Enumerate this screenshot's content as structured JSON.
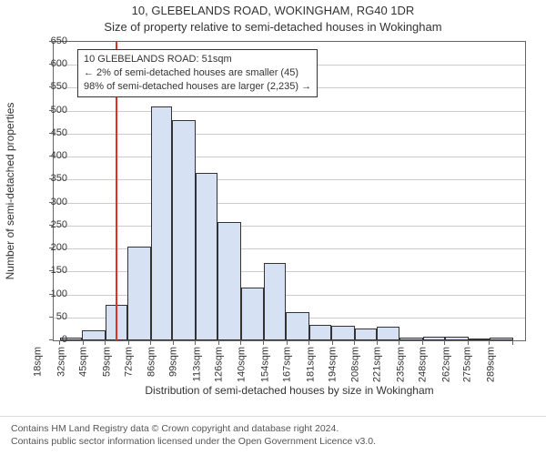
{
  "titles": {
    "main": "10, GLEBELANDS ROAD, WOKINGHAM, RG40 1DR",
    "sub": "Size of property relative to semi-detached houses in Wokingham",
    "xlabel": "Distribution of semi-detached houses by size in Wokingham",
    "ylabel": "Number of semi-detached properties"
  },
  "infobox": {
    "line1": "10 GLEBELANDS ROAD: 51sqm",
    "line2": "← 2% of semi-detached houses are smaller (45)",
    "line3": "98% of semi-detached houses are larger (2,235) →"
  },
  "chart": {
    "type": "histogram",
    "background_color": "#ffffff",
    "grid_color": "#cccccc",
    "axis_color": "#666666",
    "bar_fill": "#d6e1f4",
    "bar_stroke": "#333333",
    "marker_color": "#e03020",
    "marker_x": 51,
    "xlim": [
      14,
      296
    ],
    "ylim": [
      0,
      650
    ],
    "yticks": [
      0,
      50,
      100,
      150,
      200,
      250,
      300,
      350,
      400,
      450,
      500,
      550,
      600,
      650
    ],
    "xticks": [
      18,
      32,
      45,
      59,
      72,
      86,
      99,
      113,
      126,
      140,
      154,
      167,
      181,
      194,
      208,
      221,
      235,
      248,
      262,
      275,
      289
    ],
    "xtick_suffix": "sqm",
    "bars": [
      {
        "x0": 18,
        "x1": 31,
        "y": 5
      },
      {
        "x0": 31,
        "x1": 45,
        "y": 22
      },
      {
        "x0": 45,
        "x1": 58,
        "y": 78
      },
      {
        "x0": 58,
        "x1": 72,
        "y": 205
      },
      {
        "x0": 72,
        "x1": 85,
        "y": 510
      },
      {
        "x0": 85,
        "x1": 99,
        "y": 480
      },
      {
        "x0": 99,
        "x1": 112,
        "y": 365
      },
      {
        "x0": 112,
        "x1": 126,
        "y": 258
      },
      {
        "x0": 126,
        "x1": 140,
        "y": 115
      },
      {
        "x0": 140,
        "x1": 153,
        "y": 168
      },
      {
        "x0": 153,
        "x1": 167,
        "y": 62
      },
      {
        "x0": 167,
        "x1": 180,
        "y": 33
      },
      {
        "x0": 180,
        "x1": 194,
        "y": 32
      },
      {
        "x0": 194,
        "x1": 207,
        "y": 25
      },
      {
        "x0": 207,
        "x1": 221,
        "y": 30
      },
      {
        "x0": 221,
        "x1": 235,
        "y": 6
      },
      {
        "x0": 235,
        "x1": 248,
        "y": 7
      },
      {
        "x0": 248,
        "x1": 262,
        "y": 8
      },
      {
        "x0": 262,
        "x1": 275,
        "y": 3
      },
      {
        "x0": 275,
        "x1": 289,
        "y": 5
      }
    ]
  },
  "footer": {
    "line1": "Contains HM Land Registry data © Crown copyright and database right 2024.",
    "line2": "Contains public sector information licensed under the Open Government Licence v3.0."
  }
}
